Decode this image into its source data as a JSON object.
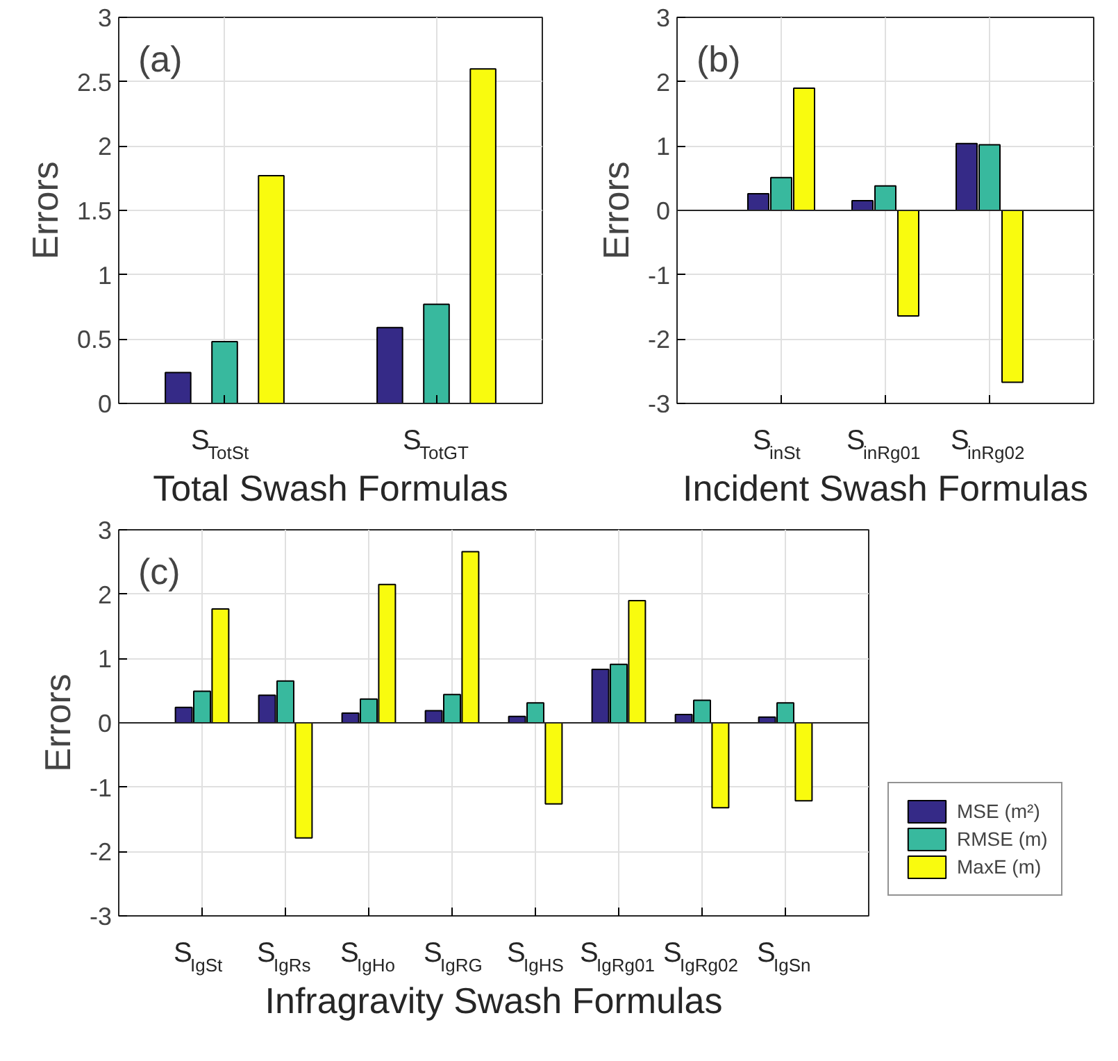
{
  "chart_data": [
    {
      "type": "bar",
      "xlabel": "Total Swash Formulas",
      "ylabel": "Errors",
      "annotations": [
        "(a)"
      ],
      "categories": [
        "S$_{TotSt}$",
        "S$_{TotGT}$"
      ],
      "ylim": [
        0,
        3
      ],
      "yticks": [
        0,
        0.5,
        1,
        1.5,
        2,
        2.5,
        3
      ],
      "grid": true,
      "series": [
        {
          "color": "#352a87",
          "values": [
            0.24,
            0.59
          ]
        },
        {
          "color": "#38b99e",
          "values": [
            0.48,
            0.77
          ]
        },
        {
          "color": "#f9fb0e",
          "values": [
            1.77,
            2.6
          ]
        }
      ]
    },
    {
      "type": "bar",
      "xlabel": "Incident Swash Formulas",
      "ylabel": "Errors",
      "annotations": [
        "(b)"
      ],
      "categories": [
        "S$_{inSt}$",
        "S$_{inRg01}$",
        "S$_{inRg02}$"
      ],
      "ylim": [
        -3,
        3
      ],
      "yticks": [
        -3,
        -2,
        -1,
        0,
        1,
        2,
        3
      ],
      "grid": true,
      "series": [
        {
          "color": "#352a87",
          "values": [
            0.26,
            0.15,
            1.04
          ]
        },
        {
          "color": "#38b99e",
          "values": [
            0.51,
            0.38,
            1.02
          ]
        },
        {
          "color": "#f9fb0e",
          "values": [
            1.9,
            -1.64,
            -2.67
          ]
        }
      ]
    },
    {
      "type": "bar",
      "xlabel": "Infragravity Swash Formulas",
      "ylabel": "Errors",
      "annotations": [
        "(c)"
      ],
      "categories": [
        "S$_{IgSt}$",
        "S$_{IgRs}$",
        "S$_{IgHo}$",
        "S$_{IgRG}$",
        "S$_{IgHS}$",
        "S$_{IgRg01}$",
        "S$_{IgRg02}$",
        "S$_{IgSn}$"
      ],
      "ylim": [
        -3,
        3
      ],
      "yticks": [
        -3,
        -2,
        -1,
        0,
        1,
        2,
        3
      ],
      "grid": true,
      "legend": "bottom right",
      "series": [
        {
          "name": "MSE (m²)",
          "color": "#352a87",
          "values": [
            0.24,
            0.43,
            0.15,
            0.19,
            0.1,
            0.83,
            0.13,
            0.09
          ]
        },
        {
          "name": "RMSE (m)",
          "color": "#38b99e",
          "values": [
            0.49,
            0.65,
            0.37,
            0.44,
            0.31,
            0.91,
            0.35,
            0.31
          ]
        },
        {
          "name": "MaxE (m)",
          "color": "#f9fb0e",
          "values": [
            1.77,
            -1.79,
            2.15,
            2.66,
            -1.26,
            1.9,
            -1.32,
            -1.21
          ]
        }
      ]
    }
  ]
}
